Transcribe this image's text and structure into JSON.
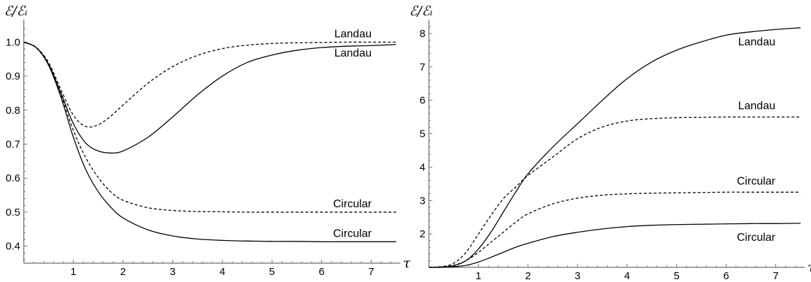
{
  "chart_data": [
    {
      "type": "line",
      "title": "",
      "xlabel": "τ",
      "ylabel": "ℰ/ℰᵢ",
      "xlim": [
        0,
        7.5
      ],
      "ylim": [
        0.35,
        1.05
      ],
      "xticks": [
        "1",
        "2",
        "3",
        "4",
        "5",
        "6",
        "7"
      ],
      "yticks": [
        "0.4",
        "0.5",
        "0.6",
        "0.7",
        "0.8",
        "0.9",
        "1.0"
      ],
      "grid": false,
      "series": [
        {
          "name": "Landau",
          "style": "dashed",
          "x": [
            0,
            0.25,
            0.5,
            0.75,
            1.0,
            1.25,
            1.5,
            1.75,
            2.0,
            2.5,
            3.0,
            3.5,
            4.0,
            4.5,
            5.0,
            5.5,
            6.0,
            6.5,
            7.0,
            7.5
          ],
          "y": [
            1.0,
            0.985,
            0.94,
            0.86,
            0.785,
            0.752,
            0.757,
            0.782,
            0.815,
            0.879,
            0.928,
            0.961,
            0.981,
            0.991,
            0.996,
            0.998,
            0.999,
            1.0,
            1.0,
            1.0
          ]
        },
        {
          "name": "Landau",
          "style": "solid",
          "x": [
            0,
            0.25,
            0.5,
            0.75,
            1.0,
            1.25,
            1.5,
            1.75,
            2.0,
            2.5,
            3.0,
            3.5,
            4.0,
            4.5,
            5.0,
            5.5,
            6.0,
            6.5,
            7.0,
            7.5
          ],
          "y": [
            1.0,
            0.984,
            0.935,
            0.85,
            0.76,
            0.703,
            0.68,
            0.674,
            0.68,
            0.72,
            0.78,
            0.845,
            0.9,
            0.94,
            0.962,
            0.976,
            0.984,
            0.988,
            0.99,
            0.993
          ]
        },
        {
          "name": "Circular",
          "style": "dashed",
          "x": [
            0,
            0.25,
            0.5,
            0.75,
            1.0,
            1.25,
            1.5,
            1.75,
            2.0,
            2.5,
            3.0,
            3.5,
            4.0,
            4.5,
            5.0,
            5.5,
            6.0,
            6.5,
            7.0,
            7.5
          ],
          "y": [
            1.0,
            0.984,
            0.935,
            0.845,
            0.74,
            0.66,
            0.602,
            0.56,
            0.535,
            0.513,
            0.505,
            0.502,
            0.501,
            0.5,
            0.5,
            0.5,
            0.5,
            0.5,
            0.5,
            0.5
          ]
        },
        {
          "name": "Circular",
          "style": "solid",
          "x": [
            0,
            0.25,
            0.5,
            0.75,
            1.0,
            1.25,
            1.5,
            1.75,
            2.0,
            2.5,
            3.0,
            3.5,
            4.0,
            4.5,
            5.0,
            5.5,
            6.0,
            6.5,
            7.0,
            7.5
          ],
          "y": [
            1.0,
            0.984,
            0.932,
            0.838,
            0.72,
            0.625,
            0.56,
            0.515,
            0.483,
            0.448,
            0.43,
            0.421,
            0.417,
            0.415,
            0.414,
            0.414,
            0.413,
            0.413,
            0.413,
            0.413
          ]
        }
      ]
    },
    {
      "type": "line",
      "title": "",
      "xlabel": "τ",
      "ylabel": "ℰ/ℰᵢ",
      "xlim": [
        0,
        7.5
      ],
      "ylim": [
        1,
        8.25
      ],
      "xticks": [
        "1",
        "2",
        "3",
        "4",
        "5",
        "6",
        "7"
      ],
      "yticks": [
        "2",
        "3",
        "4",
        "5",
        "6",
        "7",
        "8"
      ],
      "grid": false,
      "series": [
        {
          "name": "Landau",
          "style": "solid",
          "x": [
            0,
            0.25,
            0.5,
            0.75,
            1.0,
            1.25,
            1.5,
            1.75,
            2.0,
            2.5,
            3.0,
            3.5,
            4.0,
            4.5,
            5.0,
            5.5,
            6.0,
            6.5,
            7.0,
            7.5
          ],
          "y": [
            1.0,
            1.01,
            1.05,
            1.2,
            1.55,
            2.05,
            2.65,
            3.25,
            3.8,
            4.6,
            5.3,
            6.0,
            6.65,
            7.15,
            7.5,
            7.75,
            7.95,
            8.05,
            8.12,
            8.17
          ]
        },
        {
          "name": "Landau",
          "style": "dashed",
          "x": [
            0,
            0.25,
            0.5,
            0.75,
            1.0,
            1.25,
            1.5,
            1.75,
            2.0,
            2.5,
            3.0,
            3.5,
            4.0,
            4.5,
            5.0,
            5.5,
            6.0,
            6.5,
            7.0,
            7.5
          ],
          "y": [
            1.0,
            1.02,
            1.12,
            1.45,
            2.0,
            2.55,
            3.05,
            3.4,
            3.75,
            4.3,
            4.85,
            5.2,
            5.38,
            5.45,
            5.48,
            5.49,
            5.5,
            5.5,
            5.5,
            5.5
          ]
        },
        {
          "name": "Circular",
          "style": "dashed",
          "x": [
            0,
            0.25,
            0.5,
            0.75,
            1.0,
            1.25,
            1.5,
            1.75,
            2.0,
            2.5,
            3.0,
            3.5,
            4.0,
            4.5,
            5.0,
            5.5,
            6.0,
            6.5,
            7.0,
            7.5
          ],
          "y": [
            1.0,
            1.01,
            1.06,
            1.2,
            1.45,
            1.75,
            2.05,
            2.35,
            2.6,
            2.9,
            3.07,
            3.16,
            3.2,
            3.22,
            3.23,
            3.24,
            3.25,
            3.25,
            3.25,
            3.25
          ]
        },
        {
          "name": "Circular",
          "style": "solid",
          "x": [
            0,
            0.25,
            0.5,
            0.75,
            1.0,
            1.25,
            1.5,
            1.75,
            2.0,
            2.5,
            3.0,
            3.5,
            4.0,
            4.5,
            5.0,
            5.5,
            6.0,
            6.5,
            7.0,
            7.5
          ],
          "y": [
            1.0,
            1.0,
            1.02,
            1.06,
            1.16,
            1.3,
            1.45,
            1.6,
            1.72,
            1.92,
            2.05,
            2.15,
            2.22,
            2.26,
            2.28,
            2.29,
            2.3,
            2.31,
            2.31,
            2.32
          ]
        }
      ]
    }
  ]
}
